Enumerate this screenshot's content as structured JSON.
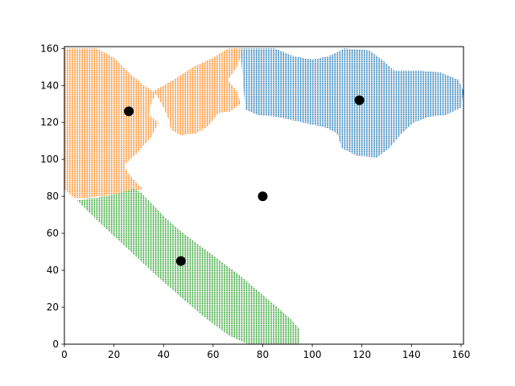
{
  "chart_data": {
    "type": "scatter",
    "title": "",
    "xlabel": "",
    "ylabel": "",
    "xlim": [
      0,
      161
    ],
    "ylim": [
      0,
      161
    ],
    "xticks": [
      0,
      20,
      40,
      60,
      80,
      100,
      120,
      140,
      160
    ],
    "yticks": [
      0,
      20,
      40,
      60,
      80,
      100,
      120,
      140,
      160
    ],
    "xtick_labels": [
      "0",
      "20",
      "40",
      "60",
      "80",
      "100",
      "120",
      "140",
      "160"
    ],
    "ytick_labels": [
      "0",
      "20",
      "40",
      "60",
      "80",
      "100",
      "120",
      "140",
      "160"
    ],
    "grid": false,
    "legend": "none",
    "series": [
      {
        "color": "#1f77b4",
        "marker": "dense small dots",
        "region_outline": [
          [
            71,
            160
          ],
          [
            85,
            160
          ],
          [
            92,
            156
          ],
          [
            100,
            154
          ],
          [
            107,
            156
          ],
          [
            113,
            160
          ],
          [
            123,
            159
          ],
          [
            129,
            153
          ],
          [
            133,
            148
          ],
          [
            144,
            148
          ],
          [
            152,
            147
          ],
          [
            159,
            143
          ],
          [
            161,
            137
          ],
          [
            160,
            128
          ],
          [
            154,
            124
          ],
          [
            147,
            123
          ],
          [
            141,
            120
          ],
          [
            136,
            114
          ],
          [
            131,
            106
          ],
          [
            126,
            101
          ],
          [
            118,
            102
          ],
          [
            112,
            106
          ],
          [
            110,
            114
          ],
          [
            106,
            117
          ],
          [
            96,
            120
          ],
          [
            86,
            123
          ],
          [
            78,
            124
          ],
          [
            73,
            127
          ]
        ]
      },
      {
        "color": "#ff7f0e",
        "marker": "dense small dots",
        "region_outline": [
          [
            0,
            160
          ],
          [
            13,
            160
          ],
          [
            20,
            155
          ],
          [
            26,
            147
          ],
          [
            32,
            140
          ],
          [
            37,
            136
          ],
          [
            35,
            130
          ],
          [
            34,
            124
          ],
          [
            38,
            120
          ],
          [
            35,
            112
          ],
          [
            29,
            103
          ],
          [
            24,
            97
          ],
          [
            26,
            92
          ],
          [
            30,
            86
          ],
          [
            32,
            84
          ],
          [
            20,
            81
          ],
          [
            8,
            79
          ],
          [
            4,
            79
          ],
          [
            0,
            84
          ],
          [
            0,
            126
          ],
          [
            5,
            126
          ],
          [
            10,
            127
          ],
          [
            18,
            125
          ],
          [
            12,
            120
          ],
          [
            4,
            118
          ],
          [
            0,
            117
          ]
        ],
        "extra_regions": [
          [
            [
              36,
              137
            ],
            [
              44,
              143
            ],
            [
              52,
              150
            ],
            [
              60,
              155
            ],
            [
              66,
              160
            ],
            [
              72,
              160
            ],
            [
              70,
              151
            ],
            [
              66,
              143
            ],
            [
              70,
              136
            ],
            [
              71,
              130
            ],
            [
              67,
              126
            ],
            [
              62,
              125
            ],
            [
              58,
              118
            ],
            [
              53,
              114
            ],
            [
              47,
              113
            ],
            [
              43,
              116
            ],
            [
              42,
              122
            ],
            [
              40,
              128
            ],
            [
              38,
              133
            ]
          ]
        ]
      },
      {
        "color": "#2ca02c",
        "marker": "dense small dots",
        "region_outline": [
          [
            5,
            78
          ],
          [
            12,
            79
          ],
          [
            20,
            81
          ],
          [
            28,
            84
          ],
          [
            31,
            82
          ],
          [
            36,
            75
          ],
          [
            41,
            68
          ],
          [
            48,
            60
          ],
          [
            56,
            52
          ],
          [
            64,
            44
          ],
          [
            71,
            37
          ],
          [
            78,
            29
          ],
          [
            85,
            21
          ],
          [
            91,
            14
          ],
          [
            95,
            8
          ],
          [
            95,
            0
          ],
          [
            74,
            0
          ],
          [
            66,
            5
          ],
          [
            58,
            13
          ],
          [
            50,
            22
          ],
          [
            44,
            29
          ],
          [
            38,
            36
          ],
          [
            30,
            46
          ],
          [
            22,
            56
          ],
          [
            14,
            66
          ]
        ]
      },
      {
        "name": "",
        "color": "#000000",
        "marker": "large circle",
        "points": [
          {
            "x": 26,
            "y": 126
          },
          {
            "x": 119,
            "y": 132
          },
          {
            "x": 80,
            "y": 80
          },
          {
            "x": 47,
            "y": 45
          }
        ]
      }
    ]
  }
}
